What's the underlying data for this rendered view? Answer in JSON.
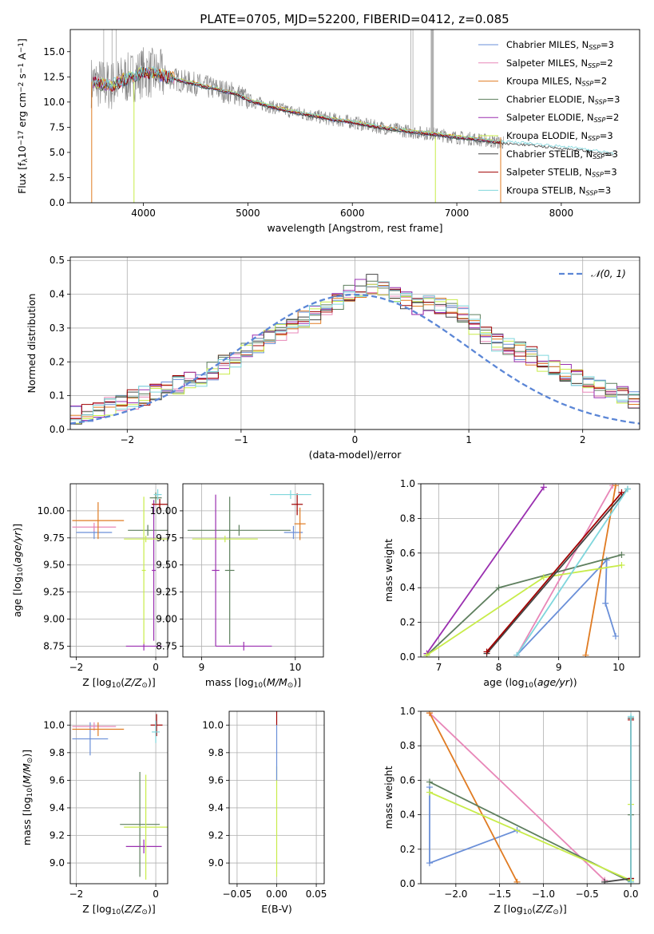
{
  "figure": {
    "title": "PLATE=0705, MJD=52200, FIBERID=0412, z=0.085"
  },
  "colors": {
    "chabrier_miles": "#6a8fd8",
    "salpeter_miles": "#e887b8",
    "kroupa_miles": "#e07b22",
    "chabrier_elodie": "#5e7f5e",
    "salpeter_elodie": "#9a2fb0",
    "kroupa_elodie": "#c8ec4a",
    "chabrier_stelib": "#444444",
    "salpeter_stelib": "#a00000",
    "kroupa_stelib": "#7fd6dc",
    "spectrum": "#808080",
    "gaussian": "#5b86d6"
  },
  "chart_data": [
    {
      "id": "spectrum",
      "type": "line",
      "xlabel": "wavelength [Angstrom, rest frame]",
      "ylabel": "Flux [f_λ 10^-17 erg cm^-2 s^-1 A^-1]",
      "xlim": [
        3300,
        8750
      ],
      "ylim": [
        0,
        17.2
      ],
      "xticks": [
        4000,
        5000,
        6000,
        7000,
        8000
      ],
      "yticks": [
        0.0,
        2.5,
        5.0,
        7.5,
        10.0,
        12.5,
        15.0
      ],
      "grid": false,
      "legend_position": "top-right",
      "legend": [
        {
          "prefix": "Chabrier MILES, N",
          "sub": "SSP",
          "suffix": "=3",
          "color_key": "chabrier_miles"
        },
        {
          "prefix": "Salpeter MILES, N",
          "sub": "SSP",
          "suffix": "=2",
          "color_key": "salpeter_miles"
        },
        {
          "prefix": "Kroupa MILES, N",
          "sub": "SSP",
          "suffix": "=2",
          "color_key": "kroupa_miles"
        },
        {
          "prefix": "Chabrier ELODIE, N",
          "sub": "SSP",
          "suffix": "=3",
          "color_key": "chabrier_elodie"
        },
        {
          "prefix": "Salpeter ELODIE, N",
          "sub": "SSP",
          "suffix": "=2",
          "color_key": "salpeter_elodie"
        },
        {
          "prefix": "Kroupa ELODIE, N",
          "sub": "SSP",
          "suffix": "=3",
          "color_key": "kroupa_elodie"
        },
        {
          "prefix": "Chabrier STELIB, N",
          "sub": "SSP",
          "suffix": "=3",
          "color_key": "chabrier_stelib"
        },
        {
          "prefix": "Salpeter STELIB, N",
          "sub": "SSP",
          "suffix": "=3",
          "color_key": "salpeter_stelib"
        },
        {
          "prefix": "Kroupa STELIB, N",
          "sub": "SSP",
          "suffix": "=3",
          "color_key": "kroupa_stelib"
        }
      ],
      "spectrum_x": [
        3500,
        3600,
        3700,
        3800,
        3900,
        4000,
        4100,
        4200,
        4300,
        4400,
        4500,
        4600,
        4700,
        4800,
        4900,
        5000,
        5200,
        5400,
        5600,
        5800,
        6000,
        6200,
        6400,
        6600,
        6800,
        7000,
        7200,
        7400,
        7600,
        7800,
        8000,
        8200,
        8500
      ],
      "spectrum_y": [
        12.0,
        11.8,
        11.6,
        12.2,
        12.5,
        13.0,
        12.8,
        12.6,
        12.3,
        12.0,
        11.8,
        11.5,
        11.3,
        11.0,
        10.8,
        10.2,
        9.6,
        9.1,
        8.7,
        8.3,
        8.0,
        7.6,
        7.3,
        7.0,
        6.8,
        6.5,
        6.3,
        6.0,
        5.9,
        5.7,
        5.5,
        5.3,
        4.8
      ]
    },
    {
      "id": "residuals",
      "type": "line",
      "xlabel": "(data-model)/error",
      "ylabel": "Normed distribution",
      "xlim": [
        -2.5,
        2.5
      ],
      "ylim": [
        0,
        0.51
      ],
      "xticks": [
        -2,
        -1,
        0,
        1,
        2
      ],
      "yticks": [
        0.0,
        0.1,
        0.2,
        0.3,
        0.4,
        0.5
      ],
      "grid": true,
      "legend_position": "top-right",
      "legend_label": "𝒩(0, 1)",
      "bins_x0": -2.5,
      "bin_width": 0.1,
      "histogram_envelope": [
        0.04,
        0.05,
        0.06,
        0.07,
        0.08,
        0.09,
        0.1,
        0.11,
        0.12,
        0.13,
        0.14,
        0.15,
        0.17,
        0.19,
        0.21,
        0.23,
        0.25,
        0.27,
        0.29,
        0.31,
        0.33,
        0.34,
        0.36,
        0.38,
        0.4,
        0.42,
        0.43,
        0.42,
        0.4,
        0.38,
        0.37,
        0.38,
        0.37,
        0.36,
        0.34,
        0.31,
        0.28,
        0.26,
        0.24,
        0.23,
        0.22,
        0.2,
        0.19,
        0.17,
        0.15,
        0.13,
        0.12,
        0.11,
        0.1,
        0.09
      ],
      "gaussian": {
        "mu": 0,
        "sigma": 1
      }
    },
    {
      "id": "age_vs_Z",
      "type": "scatter",
      "xlabel": "Z [log10(Z/Z⊙)]",
      "ylabel": "age [log10(age/yr)]",
      "xlim": [
        -2.15,
        0.3
      ],
      "ylim": [
        8.65,
        10.25
      ],
      "xticks": [
        -2,
        0
      ],
      "yticks": [
        8.75,
        9.0,
        9.25,
        9.5,
        9.75,
        10.0
      ],
      "grid": true,
      "points": [
        {
          "x": -1.55,
          "y": 9.8,
          "xerr": 0.45,
          "yerr": 0.06,
          "c": "chabrier_miles"
        },
        {
          "x": -1.55,
          "y": 9.85,
          "xerr": 0.55,
          "yerr": 0.04,
          "c": "salpeter_miles"
        },
        {
          "x": -1.45,
          "y": 9.91,
          "xerr": 0.65,
          "yerr": 0.17,
          "c": "kroupa_miles"
        },
        {
          "x": -0.2,
          "y": 9.82,
          "xerr": 0.5,
          "yerr": 0.05,
          "c": "chabrier_elodie"
        },
        {
          "x": 0.0,
          "y": 10.12,
          "xerr": 0.15,
          "yerr": 0.05,
          "c": "chabrier_elodie"
        },
        {
          "x": -0.3,
          "y": 8.75,
          "xerr": 0.45,
          "yerr": 0.04,
          "c": "salpeter_elodie"
        },
        {
          "x": -0.05,
          "y": 9.45,
          "xerr": 0.05,
          "yerr": 0.65,
          "c": "salpeter_elodie"
        },
        {
          "x": -0.25,
          "y": 9.74,
          "xerr": 0.55,
          "yerr": 0.03,
          "c": "kroupa_elodie"
        },
        {
          "x": -0.3,
          "y": 9.45,
          "xerr": 0.05,
          "yerr": 0.68,
          "c": "kroupa_elodie"
        },
        {
          "x": 0.1,
          "y": 10.06,
          "xerr": 0.2,
          "yerr": 0.05,
          "c": "salpeter_stelib"
        },
        {
          "x": 0.05,
          "y": 10.15,
          "xerr": 0.1,
          "yerr": 0.05,
          "c": "kroupa_stelib"
        }
      ]
    },
    {
      "id": "age_vs_mass",
      "type": "scatter",
      "xlabel": "mass [log10(M/M⊙)]",
      "ylabel": "",
      "xlim": [
        8.8,
        10.3
      ],
      "ylim": [
        8.65,
        10.25
      ],
      "xticks": [
        9,
        10
      ],
      "yticks": [
        8.75,
        9.0,
        9.25,
        9.5,
        9.75,
        10.0
      ],
      "grid": true,
      "points": [
        {
          "x": 9.98,
          "y": 9.8,
          "xerr": 0.1,
          "yerr": 0.06,
          "c": "chabrier_miles"
        },
        {
          "x": 10.05,
          "y": 9.88,
          "xerr": 0.06,
          "yerr": 0.15,
          "c": "kroupa_miles"
        },
        {
          "x": 9.4,
          "y": 9.82,
          "xerr": 0.55,
          "yerr": 0.05,
          "c": "chabrier_elodie"
        },
        {
          "x": 9.3,
          "y": 9.45,
          "xerr": 0.05,
          "yerr": 0.68,
          "c": "chabrier_elodie"
        },
        {
          "x": 9.15,
          "y": 9.45,
          "xerr": 0.04,
          "yerr": 0.7,
          "c": "salpeter_elodie"
        },
        {
          "x": 9.45,
          "y": 8.75,
          "xerr": 0.3,
          "yerr": 0.04,
          "c": "salpeter_elodie"
        },
        {
          "x": 9.25,
          "y": 9.74,
          "xerr": 0.35,
          "yerr": 0.03,
          "c": "kroupa_elodie"
        },
        {
          "x": 10.02,
          "y": 10.06,
          "xerr": 0.06,
          "yerr": 0.1,
          "c": "salpeter_stelib"
        },
        {
          "x": 9.95,
          "y": 10.15,
          "xerr": 0.22,
          "yerr": 0.04,
          "c": "kroupa_stelib"
        }
      ]
    },
    {
      "id": "mass_weight_vs_age",
      "type": "line",
      "xlabel": "age (log10(age/yr))",
      "ylabel": "mass weight",
      "xlim": [
        6.7,
        10.35
      ],
      "ylim": [
        0,
        1.0
      ],
      "xticks": [
        7,
        8,
        9,
        10
      ],
      "yticks": [
        0.0,
        0.2,
        0.4,
        0.6,
        0.8,
        1.0
      ],
      "grid": true,
      "series": [
        {
          "c": "chabrier_miles",
          "x": [
            8.3,
            9.8,
            9.78,
            9.95
          ],
          "y": [
            0.01,
            0.56,
            0.31,
            0.12
          ]
        },
        {
          "c": "salpeter_miles",
          "x": [
            8.3,
            9.9
          ],
          "y": [
            0.01,
            0.99
          ]
        },
        {
          "c": "kroupa_miles",
          "x": [
            9.45,
            9.95
          ],
          "y": [
            0.01,
            0.99
          ]
        },
        {
          "c": "chabrier_elodie",
          "x": [
            6.8,
            8.0,
            10.05
          ],
          "y": [
            0.01,
            0.4,
            0.59
          ]
        },
        {
          "c": "salpeter_elodie",
          "x": [
            6.8,
            8.75
          ],
          "y": [
            0.02,
            0.98
          ]
        },
        {
          "c": "kroupa_elodie",
          "x": [
            6.8,
            8.75,
            10.05
          ],
          "y": [
            0.01,
            0.46,
            0.53
          ]
        },
        {
          "c": "chabrier_stelib",
          "x": [
            7.8,
            10.15
          ],
          "y": [
            0.02,
            0.97
          ]
        },
        {
          "c": "salpeter_stelib",
          "x": [
            7.8,
            10.05
          ],
          "y": [
            0.03,
            0.95
          ]
        },
        {
          "c": "kroupa_stelib",
          "x": [
            8.3,
            10.15
          ],
          "y": [
            0.01,
            0.97
          ]
        }
      ]
    },
    {
      "id": "mass_vs_Z",
      "type": "scatter",
      "xlabel": "Z [log10(Z/Z⊙)]",
      "ylabel": "mass [log10(M/M⊙)]",
      "xlim": [
        -2.15,
        0.3
      ],
      "ylim": [
        8.85,
        10.1
      ],
      "xticks": [
        -2,
        0
      ],
      "yticks": [
        9.0,
        9.2,
        9.4,
        9.6,
        9.8,
        10.0
      ],
      "grid": true,
      "points": [
        {
          "x": -1.65,
          "y": 9.9,
          "xerr": 0.45,
          "yerr": 0.12,
          "c": "chabrier_miles"
        },
        {
          "x": -1.55,
          "y": 9.99,
          "xerr": 0.55,
          "yerr": 0.03,
          "c": "salpeter_miles"
        },
        {
          "x": -1.45,
          "y": 9.97,
          "xerr": 0.65,
          "yerr": 0.05,
          "c": "kroupa_miles"
        },
        {
          "x": -0.4,
          "y": 9.28,
          "xerr": 0.5,
          "yerr": 0.38,
          "c": "chabrier_elodie"
        },
        {
          "x": -0.3,
          "y": 9.12,
          "xerr": 0.45,
          "yerr": 0.05,
          "c": "salpeter_elodie"
        },
        {
          "x": -0.25,
          "y": 9.26,
          "xerr": 0.55,
          "yerr": 0.38,
          "c": "kroupa_elodie"
        },
        {
          "x": 0.02,
          "y": 10.0,
          "xerr": 0.15,
          "yerr": 0.08,
          "c": "salpeter_stelib"
        },
        {
          "x": 0.0,
          "y": 9.95,
          "xerr": 0.1,
          "yerr": 0.08,
          "c": "kroupa_stelib"
        }
      ]
    },
    {
      "id": "mass_vs_ebv",
      "type": "scatter",
      "xlabel": "E(B-V)",
      "ylabel": "",
      "xlim": [
        -0.06,
        0.06
      ],
      "ylim": [
        8.85,
        10.1
      ],
      "xticks": [
        -0.05,
        0.0,
        0.05
      ],
      "yticks": [
        9.0,
        9.2,
        9.4,
        9.6,
        9.8,
        10.0
      ],
      "grid": true,
      "points": [
        {
          "x": 0.0,
          "y": 9.3,
          "xerr": 0.0,
          "yerr": 0.4,
          "c": "kroupa_elodie"
        },
        {
          "x": 0.0,
          "y": 9.8,
          "xerr": 0.0,
          "yerr": 0.2,
          "c": "chabrier_miles"
        },
        {
          "x": 0.0,
          "y": 10.05,
          "xerr": 0.0,
          "yerr": 0.05,
          "c": "salpeter_stelib"
        }
      ]
    },
    {
      "id": "mass_weight_vs_Z",
      "type": "line",
      "xlabel": "Z [log10(Z/Z⊙)]",
      "ylabel": "mass weight",
      "xlim": [
        -2.4,
        0.1
      ],
      "ylim": [
        0,
        1.0
      ],
      "xticks": [
        -2.0,
        -1.5,
        -1.0,
        -0.5,
        0.0
      ],
      "yticks": [
        0.0,
        0.2,
        0.4,
        0.6,
        0.8,
        1.0
      ],
      "grid": true,
      "series": [
        {
          "c": "chabrier_miles",
          "x": [
            -1.3,
            -2.3,
            -2.3
          ],
          "y": [
            0.31,
            0.12,
            0.56
          ]
        },
        {
          "c": "salpeter_miles",
          "x": [
            -2.3,
            -0.3
          ],
          "y": [
            0.99,
            0.02
          ]
        },
        {
          "c": "kroupa_miles",
          "x": [
            -2.3,
            -1.3
          ],
          "y": [
            0.99,
            0.01
          ]
        },
        {
          "c": "chabrier_elodie",
          "x": [
            -2.3,
            0.0,
            0.0
          ],
          "y": [
            0.59,
            0.01,
            0.4
          ]
        },
        {
          "c": "kroupa_elodie",
          "x": [
            -2.3,
            0.0,
            0.0
          ],
          "y": [
            0.53,
            0.02,
            0.46
          ]
        },
        {
          "c": "chabrier_stelib",
          "x": [
            -0.3,
            0.0,
            0.0
          ],
          "y": [
            0.01,
            0.03,
            0.96
          ]
        },
        {
          "c": "salpeter_stelib",
          "x": [
            0.0,
            0.0
          ],
          "y": [
            0.03,
            0.95
          ]
        },
        {
          "c": "kroupa_stelib",
          "x": [
            0.0,
            0.0
          ],
          "y": [
            0.01,
            0.97
          ]
        }
      ]
    }
  ]
}
